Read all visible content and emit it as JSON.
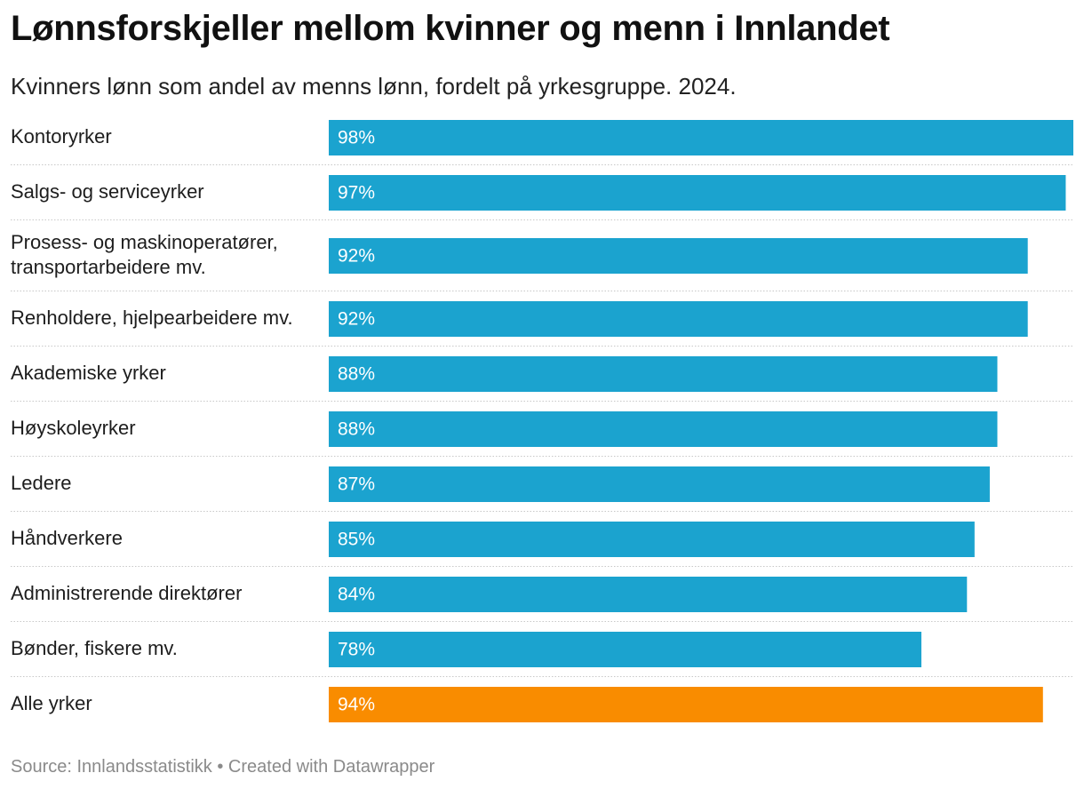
{
  "title": "Lønnsforskjeller mellom kvinner og menn i Innlandet",
  "subtitle": "Kvinners lønn som andel av menns lønn, fordelt på yrkesgruppe. 2024.",
  "footer": {
    "source": "Source: Innlandsstatistikk",
    "separator": "•",
    "credit": "Created with Datawrapper"
  },
  "colors": {
    "bar": "#1ba3cf",
    "highlight": "#f98c00",
    "divider": "#c8c8c8",
    "bar_text": "#ffffff",
    "label_text": "#1d1d1d"
  },
  "chart_data": {
    "type": "bar",
    "orientation": "horizontal",
    "title": "Lønnsforskjeller mellom kvinner og menn i Innlandet",
    "subtitle": "Kvinners lønn som andel av menns lønn, fordelt på yrkesgruppe. 2024.",
    "xlabel": "",
    "ylabel": "",
    "xlim": [
      0,
      98
    ],
    "unit": "%",
    "grid": false,
    "legend": "none",
    "categories": [
      [
        "Kontoryrker"
      ],
      [
        "Salgs- og serviceyrker"
      ],
      [
        "Prosess- og maskinoperatører,",
        "transportarbeidere mv."
      ],
      [
        "Renholdere, hjelpearbeidere mv."
      ],
      [
        "Akademiske yrker"
      ],
      [
        "Høyskoleyrker"
      ],
      [
        "Ledere"
      ],
      [
        "Håndverkere"
      ],
      [
        "Administrerende direktører"
      ],
      [
        "Bønder, fiskere mv."
      ],
      [
        "Alle yrker"
      ]
    ],
    "values": [
      98,
      97,
      92,
      92,
      88,
      88,
      87,
      85,
      84,
      78,
      94
    ],
    "labels": [
      "98%",
      "97%",
      "92%",
      "92%",
      "88%",
      "88%",
      "87%",
      "85%",
      "84%",
      "78%",
      "94%"
    ],
    "highlighted": [
      "Alle yrker"
    ]
  }
}
